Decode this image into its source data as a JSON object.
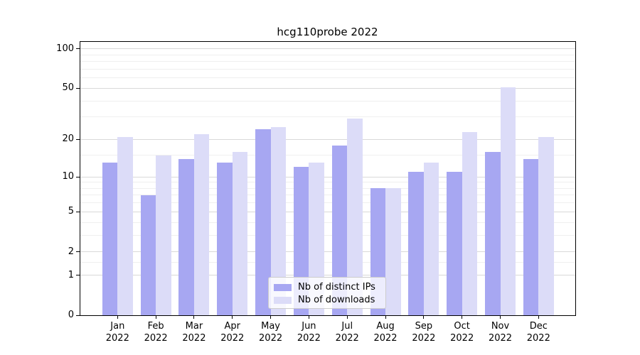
{
  "title": "hcg110probe 2022",
  "colors": {
    "ips": "#a7a7f2",
    "downloads": "#dcdcf8",
    "grid_major": "#d9d9d9",
    "grid_minor": "#efefef",
    "spine": "#000000",
    "legend_border": "#cccccc"
  },
  "legend": {
    "items": [
      {
        "label": "Nb of distinct IPs",
        "color_key": "ips"
      },
      {
        "label": "Nb of downloads",
        "color_key": "downloads"
      }
    ]
  },
  "y_axis": {
    "tick_labels": [
      "100",
      "50",
      "20",
      "10",
      "5",
      "2",
      "1",
      "0"
    ],
    "tick_values": [
      100,
      50,
      20,
      10,
      5,
      2,
      1,
      0
    ],
    "minor_values": [
      1.5,
      3,
      4,
      6,
      7,
      8,
      9,
      15,
      30,
      40,
      60,
      70,
      80,
      90
    ]
  },
  "x_axis": {
    "months": [
      "Jan",
      "Feb",
      "Mar",
      "Apr",
      "May",
      "Jun",
      "Jul",
      "Aug",
      "Sep",
      "Oct",
      "Nov",
      "Dec"
    ],
    "year": "2022"
  },
  "chart_data": {
    "type": "bar",
    "title": "hcg110probe 2022",
    "categories": [
      "Jan 2022",
      "Feb 2022",
      "Mar 2022",
      "Apr 2022",
      "May 2022",
      "Jun 2022",
      "Jul 2022",
      "Aug 2022",
      "Sep 2022",
      "Oct 2022",
      "Nov 2022",
      "Dec 2022"
    ],
    "series": [
      {
        "name": "Nb of distinct IPs",
        "values": [
          13,
          7,
          14,
          13,
          24,
          12,
          18,
          8,
          11,
          11,
          16,
          14
        ]
      },
      {
        "name": "Nb of downloads",
        "values": [
          21,
          15,
          22,
          16,
          25,
          13,
          29,
          8,
          13,
          23,
          51,
          21
        ]
      }
    ],
    "xlabel": "",
    "ylabel": "",
    "yscale": "log(value+1)",
    "ylim": [
      0,
      114
    ],
    "grid": true,
    "legend_position": "lower center"
  }
}
